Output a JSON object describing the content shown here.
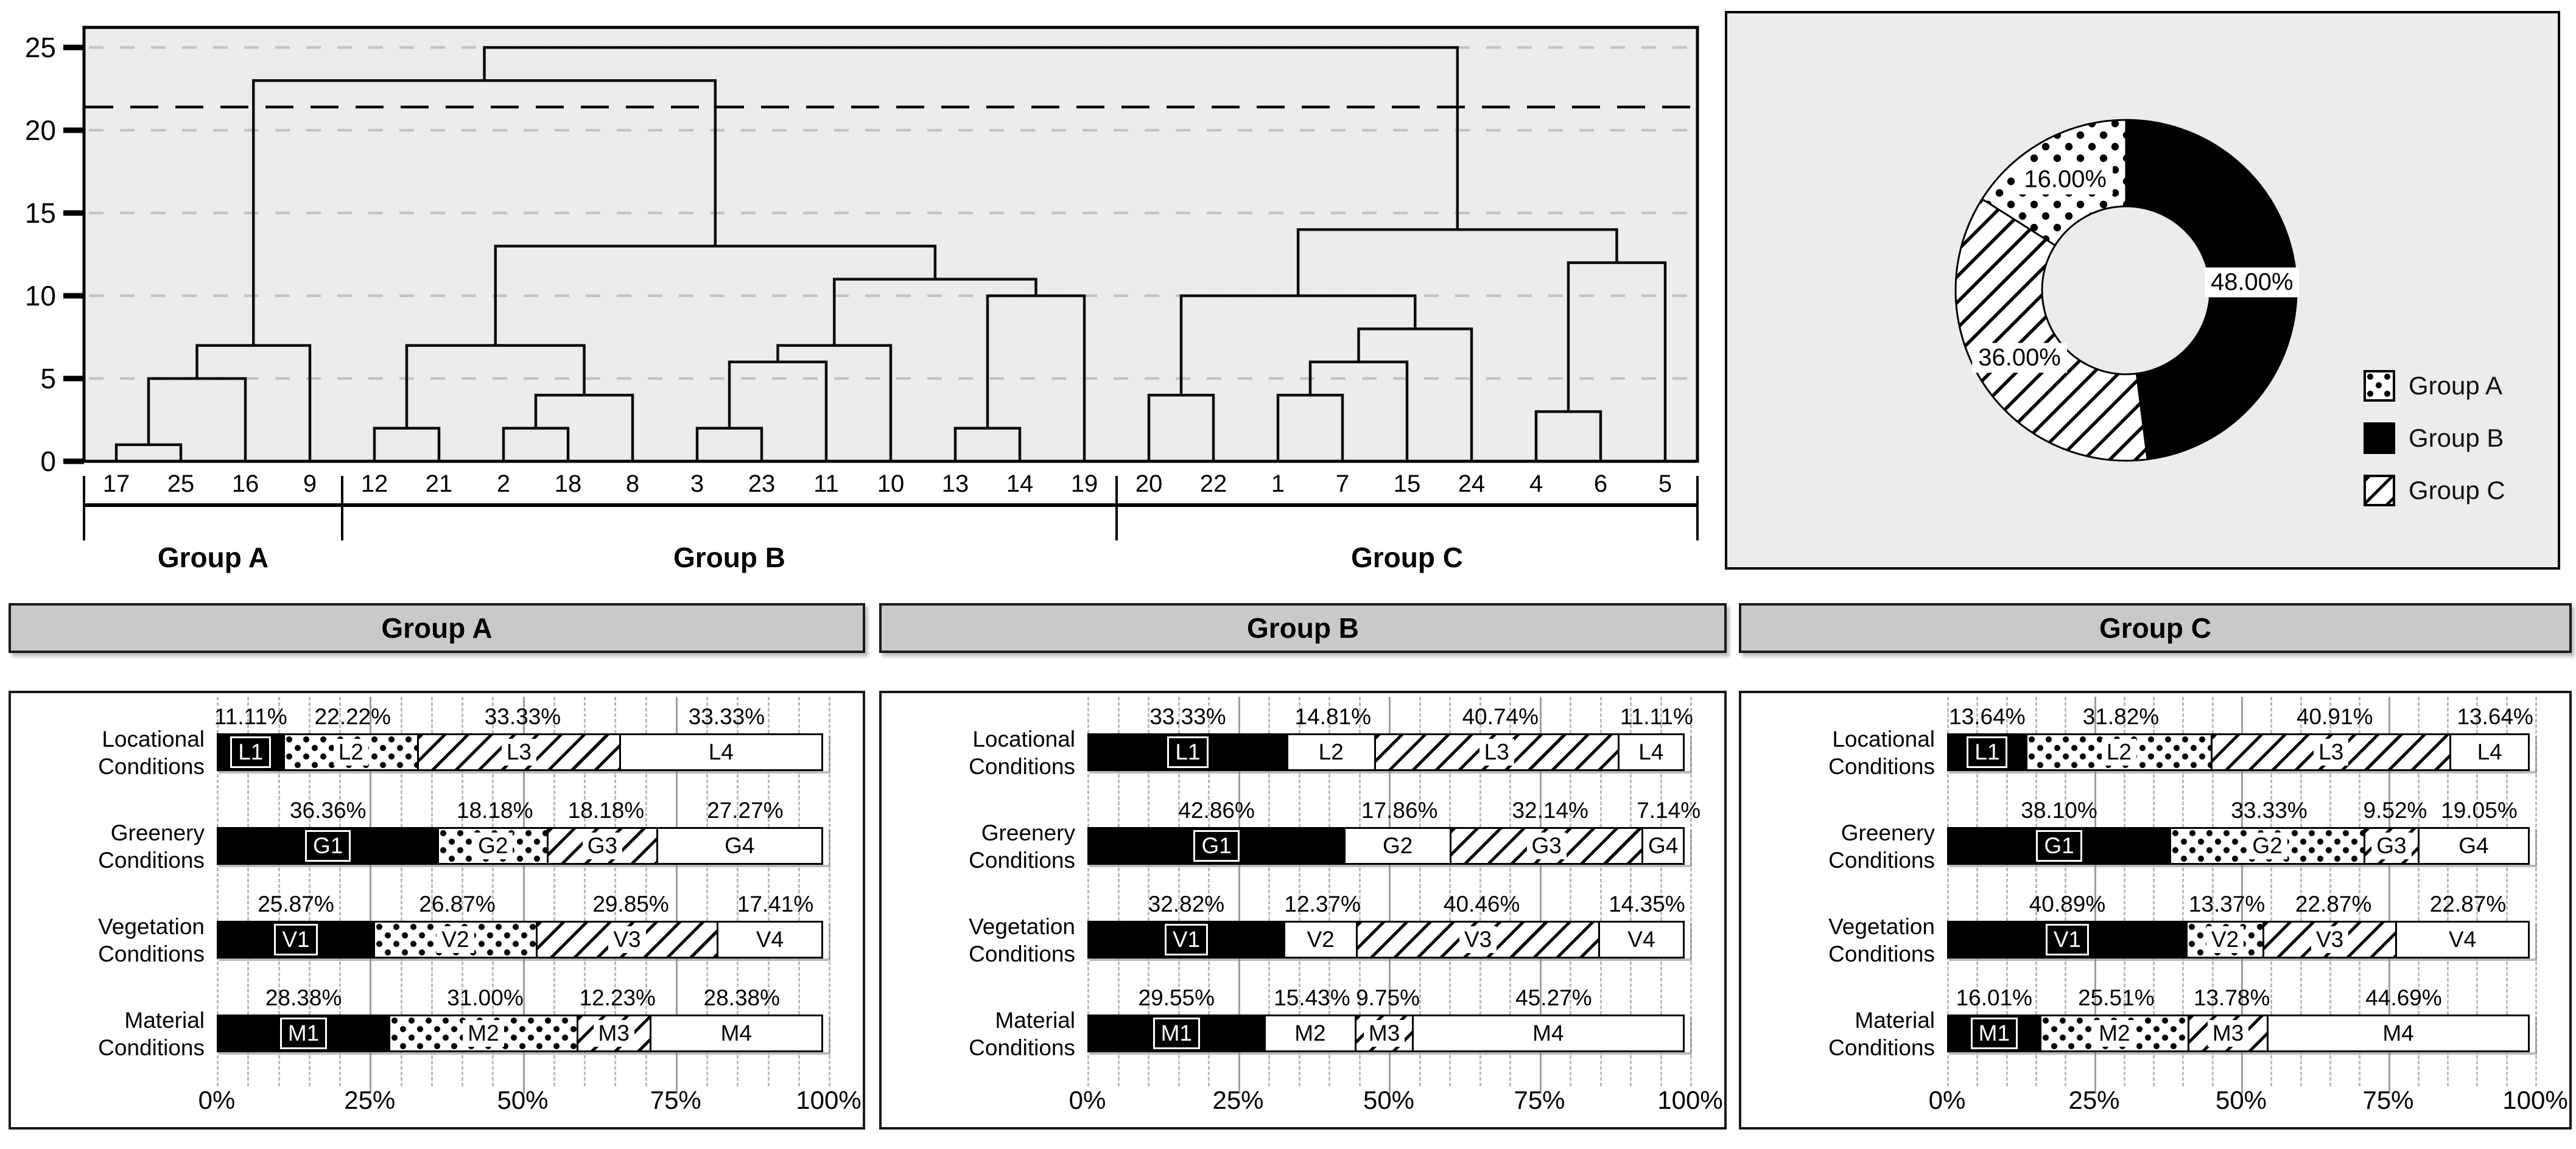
{
  "colors": {
    "panel_bg": "#ececec",
    "header_bg": "#c9c9c9",
    "grid_gray": "#c3c3c3",
    "ink": "#000000",
    "white": "#ffffff"
  },
  "chart_data": [
    {
      "type": "dendrogram",
      "title": "",
      "y_ticks": [
        "0",
        "5",
        "10",
        "15",
        "20",
        "25"
      ],
      "ylim": [
        0,
        26.2
      ],
      "grid": true,
      "cut_line_y": 21.4,
      "leaf_order": [
        "17",
        "25",
        "16",
        "9",
        "12",
        "21",
        "2",
        "18",
        "8",
        "3",
        "23",
        "11",
        "10",
        "13",
        "14",
        "19",
        "20",
        "22",
        "1",
        "7",
        "15",
        "24",
        "4",
        "6",
        "5"
      ],
      "merges": [
        {
          "key": "a1",
          "children": [
            "17",
            "25"
          ],
          "height": 1
        },
        {
          "key": "a2",
          "children": [
            "a1",
            "16"
          ],
          "height": 5
        },
        {
          "key": "a3",
          "children": [
            "a2",
            "9"
          ],
          "height": 7
        },
        {
          "key": "b1",
          "children": [
            "12",
            "21"
          ],
          "height": 2
        },
        {
          "key": "b2",
          "children": [
            "2",
            "18"
          ],
          "height": 2
        },
        {
          "key": "b3",
          "children": [
            "b2",
            "8"
          ],
          "height": 4
        },
        {
          "key": "b4",
          "children": [
            "b1",
            "b3"
          ],
          "height": 7
        },
        {
          "key": "b5",
          "children": [
            "3",
            "23"
          ],
          "height": 2
        },
        {
          "key": "b6",
          "children": [
            "b5",
            "11"
          ],
          "height": 6
        },
        {
          "key": "b7",
          "children": [
            "b6",
            "10"
          ],
          "height": 7
        },
        {
          "key": "b8",
          "children": [
            "13",
            "14"
          ],
          "height": 2
        },
        {
          "key": "b9",
          "children": [
            "b8",
            "19"
          ],
          "height": 10
        },
        {
          "key": "b10",
          "children": [
            "b7",
            "b9"
          ],
          "height": 11
        },
        {
          "key": "b11",
          "children": [
            "b4",
            "b10"
          ],
          "height": 13
        },
        {
          "key": "ab",
          "children": [
            "a3",
            "b11"
          ],
          "height": 23
        },
        {
          "key": "c1",
          "children": [
            "20",
            "22"
          ],
          "height": 4
        },
        {
          "key": "c2",
          "children": [
            "1",
            "7"
          ],
          "height": 4
        },
        {
          "key": "c3",
          "children": [
            "c2",
            "15"
          ],
          "height": 6
        },
        {
          "key": "c4",
          "children": [
            "c3",
            "24"
          ],
          "height": 8
        },
        {
          "key": "c5",
          "children": [
            "c1",
            "c4"
          ],
          "height": 10
        },
        {
          "key": "c6",
          "children": [
            "4",
            "6"
          ],
          "height": 3
        },
        {
          "key": "c7",
          "children": [
            "c6",
            "5"
          ],
          "height": 12
        },
        {
          "key": "c8",
          "children": [
            "c5",
            "c7"
          ],
          "height": 14
        },
        {
          "key": "root",
          "children": [
            "ab",
            "c8"
          ],
          "height": 25
        }
      ],
      "group_brackets": [
        {
          "label": "Group A",
          "from_leaf": 0,
          "to_leaf": 3
        },
        {
          "label": "Group B",
          "from_leaf": 4,
          "to_leaf": 15
        },
        {
          "label": "Group C",
          "from_leaf": 16,
          "to_leaf": 24
        }
      ]
    },
    {
      "type": "pie",
      "donut": true,
      "start_angle_deg": 0,
      "clockwise": true,
      "slices": [
        {
          "name": "Group B",
          "value": 48,
          "label": "48.00%",
          "pattern": "solid"
        },
        {
          "name": "Group C",
          "value": 36,
          "label": "36.00%",
          "pattern": "hatch"
        },
        {
          "name": "Group A",
          "value": 16,
          "label": "16.00%",
          "pattern": "dots"
        }
      ],
      "legend": [
        {
          "label": "Group A",
          "pattern": "dots"
        },
        {
          "label": "Group B",
          "pattern": "solid"
        },
        {
          "label": "Group C",
          "pattern": "hatch"
        }
      ],
      "legend_position": "right-bottom"
    },
    {
      "type": "bar",
      "stacked": true,
      "orientation": "horizontal",
      "title": "Group A",
      "x_ticks": [
        "0%",
        "25%",
        "50%",
        "75%",
        "100%"
      ],
      "xlim": [
        0,
        100
      ],
      "rows": [
        {
          "category": [
            "Locational",
            "Conditions"
          ],
          "segments": [
            {
              "name": "L1",
              "pct": 11.11,
              "label": "11.11%",
              "pattern": "solid"
            },
            {
              "name": "L2",
              "pct": 22.22,
              "label": "22.22%",
              "pattern": "dots"
            },
            {
              "name": "L3",
              "pct": 33.33,
              "label": "33.33%",
              "pattern": "hatch"
            },
            {
              "name": "L4",
              "pct": 33.33,
              "label": "33.33%",
              "pattern": "white"
            }
          ]
        },
        {
          "category": [
            "Greenery",
            "Conditions"
          ],
          "segments": [
            {
              "name": "G1",
              "pct": 36.36,
              "label": "36.36%",
              "pattern": "solid"
            },
            {
              "name": "G2",
              "pct": 18.18,
              "label": "18.18%",
              "pattern": "dots"
            },
            {
              "name": "G3",
              "pct": 18.18,
              "label": "18.18%",
              "pattern": "hatch"
            },
            {
              "name": "G4",
              "pct": 27.27,
              "label": "27.27%",
              "pattern": "white"
            }
          ]
        },
        {
          "category": [
            "Vegetation",
            "Conditions"
          ],
          "segments": [
            {
              "name": "V1",
              "pct": 25.87,
              "label": "25.87%",
              "pattern": "solid"
            },
            {
              "name": "V2",
              "pct": 26.87,
              "label": "26.87%",
              "pattern": "dots"
            },
            {
              "name": "V3",
              "pct": 29.85,
              "label": "29.85%",
              "pattern": "hatch"
            },
            {
              "name": "V4",
              "pct": 17.41,
              "label": "17.41%",
              "pattern": "white"
            }
          ]
        },
        {
          "category": [
            "Material",
            "Conditions"
          ],
          "segments": [
            {
              "name": "M1",
              "pct": 28.38,
              "label": "28.38%",
              "pattern": "solid"
            },
            {
              "name": "M2",
              "pct": 31.0,
              "label": "31.00%",
              "pattern": "dots"
            },
            {
              "name": "M3",
              "pct": 12.23,
              "label": "12.23%",
              "pattern": "hatch"
            },
            {
              "name": "M4",
              "pct": 28.38,
              "label": "28.38%",
              "pattern": "white"
            }
          ]
        }
      ]
    },
    {
      "type": "bar",
      "stacked": true,
      "orientation": "horizontal",
      "title": "Group B",
      "x_ticks": [
        "0%",
        "25%",
        "50%",
        "75%",
        "100%"
      ],
      "xlim": [
        0,
        100
      ],
      "rows": [
        {
          "category": [
            "Locational",
            "Conditions"
          ],
          "segments": [
            {
              "name": "L1",
              "pct": 33.33,
              "label": "33.33%",
              "pattern": "solid"
            },
            {
              "name": "L2",
              "pct": 14.81,
              "label": "14.81%",
              "pattern": "white"
            },
            {
              "name": "L3",
              "pct": 40.74,
              "label": "40.74%",
              "pattern": "hatch"
            },
            {
              "name": "L4",
              "pct": 11.11,
              "label": "11.11%",
              "pattern": "white"
            }
          ]
        },
        {
          "category": [
            "Greenery",
            "Conditions"
          ],
          "segments": [
            {
              "name": "G1",
              "pct": 42.86,
              "label": "42.86%",
              "pattern": "solid"
            },
            {
              "name": "G2",
              "pct": 17.86,
              "label": "17.86%",
              "pattern": "white"
            },
            {
              "name": "G3",
              "pct": 32.14,
              "label": "32.14%",
              "pattern": "hatch"
            },
            {
              "name": "G4",
              "pct": 7.14,
              "label": "7.14%",
              "pattern": "white"
            }
          ]
        },
        {
          "category": [
            "Vegetation",
            "Conditions"
          ],
          "segments": [
            {
              "name": "V1",
              "pct": 32.82,
              "label": "32.82%",
              "pattern": "solid"
            },
            {
              "name": "V2",
              "pct": 12.37,
              "label": "12.37%",
              "pattern": "white"
            },
            {
              "name": "V3",
              "pct": 40.46,
              "label": "40.46%",
              "pattern": "hatch"
            },
            {
              "name": "V4",
              "pct": 14.35,
              "label": "14.35%",
              "pattern": "white"
            }
          ]
        },
        {
          "category": [
            "Material",
            "Conditions"
          ],
          "segments": [
            {
              "name": "M1",
              "pct": 29.55,
              "label": "29.55%",
              "pattern": "solid"
            },
            {
              "name": "M2",
              "pct": 15.43,
              "label": "15.43%",
              "pattern": "white"
            },
            {
              "name": "M3",
              "pct": 9.75,
              "label": "9.75%",
              "pattern": "hatch"
            },
            {
              "name": "M4",
              "pct": 45.27,
              "label": "45.27%",
              "pattern": "white"
            }
          ]
        }
      ]
    },
    {
      "type": "bar",
      "stacked": true,
      "orientation": "horizontal",
      "title": "Group C",
      "x_ticks": [
        "0%",
        "25%",
        "50%",
        "75%",
        "100%"
      ],
      "xlim": [
        0,
        100
      ],
      "rows": [
        {
          "category": [
            "Locational",
            "Conditions"
          ],
          "segments": [
            {
              "name": "L1",
              "pct": 13.64,
              "label": "13.64%",
              "pattern": "solid"
            },
            {
              "name": "L2",
              "pct": 31.82,
              "label": "31.82%",
              "pattern": "dots"
            },
            {
              "name": "L3",
              "pct": 40.91,
              "label": "40.91%",
              "pattern": "hatch"
            },
            {
              "name": "L4",
              "pct": 13.64,
              "label": "13.64%",
              "pattern": "white"
            }
          ]
        },
        {
          "category": [
            "Greenery",
            "Conditions"
          ],
          "segments": [
            {
              "name": "G1",
              "pct": 38.1,
              "label": "38.10%",
              "pattern": "solid"
            },
            {
              "name": "G2",
              "pct": 33.33,
              "label": "33.33%",
              "pattern": "dots"
            },
            {
              "name": "G3",
              "pct": 9.52,
              "label": "9.52%",
              "pattern": "hatch"
            },
            {
              "name": "G4",
              "pct": 19.05,
              "label": "19.05%",
              "pattern": "white"
            }
          ]
        },
        {
          "category": [
            "Vegetation",
            "Conditions"
          ],
          "segments": [
            {
              "name": "V1",
              "pct": 40.89,
              "label": "40.89%",
              "pattern": "solid"
            },
            {
              "name": "V2",
              "pct": 13.37,
              "label": "13.37%",
              "pattern": "dots"
            },
            {
              "name": "V3",
              "pct": 22.87,
              "label": "22.87%",
              "pattern": "hatch"
            },
            {
              "name": "V4",
              "pct": 22.87,
              "label": "22.87%",
              "pattern": "white"
            }
          ]
        },
        {
          "category": [
            "Material",
            "Conditions"
          ],
          "segments": [
            {
              "name": "M1",
              "pct": 16.01,
              "label": "16.01%",
              "pattern": "solid"
            },
            {
              "name": "M2",
              "pct": 25.51,
              "label": "25.51%",
              "pattern": "dots"
            },
            {
              "name": "M3",
              "pct": 13.78,
              "label": "13.78%",
              "pattern": "hatch"
            },
            {
              "name": "M4",
              "pct": 44.69,
              "label": "44.69%",
              "pattern": "white"
            }
          ]
        }
      ]
    }
  ]
}
